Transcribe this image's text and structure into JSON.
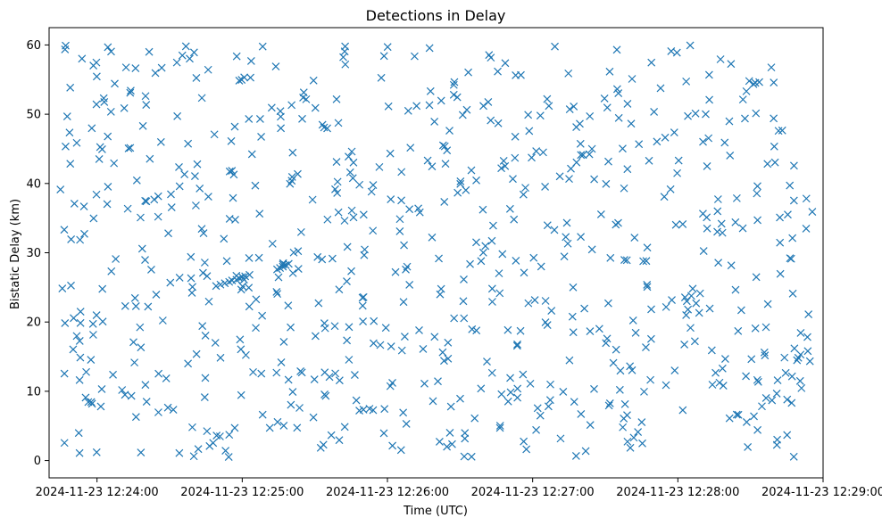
{
  "chart_data": {
    "type": "scatter",
    "title": "Detections in Delay",
    "xlabel": "Time (UTC)",
    "ylabel": "Bistatic Delay (km)",
    "marker": "x",
    "color": "#1f77b4",
    "x_unit": "minutes after 2024-11-23 12:24:00 UTC",
    "xlim": [
      -0.33,
      5.0
    ],
    "ylim": [
      -2.5,
      62.5
    ],
    "x_ticks": [
      0,
      1,
      2,
      3,
      4,
      5
    ],
    "x_tick_labels": [
      "2024-11-23 12:24:00",
      "2024-11-23 12:25:00",
      "2024-11-23 12:26:00",
      "2024-11-23 12:27:00",
      "2024-11-23 12:28:00",
      "2024-11-23 12:29:00"
    ],
    "y_ticks": [
      0,
      10,
      20,
      30,
      40,
      50,
      60
    ],
    "y_tick_labels": [
      "0",
      "10",
      "20",
      "30",
      "40",
      "50",
      "60"
    ],
    "track": [
      [
        0.82,
        25.2
      ],
      [
        0.85,
        25.4
      ],
      [
        0.88,
        25.6
      ],
      [
        0.91,
        25.8
      ],
      [
        0.93,
        26.0
      ],
      [
        0.96,
        26.1
      ],
      [
        0.98,
        26.3
      ],
      [
        1.0,
        26.5
      ],
      [
        1.02,
        26.6
      ],
      [
        1.05,
        26.8
      ],
      [
        1.24,
        27.6
      ],
      [
        1.26,
        27.8
      ],
      [
        1.28,
        28.0
      ],
      [
        1.3,
        28.2
      ],
      [
        1.32,
        28.4
      ]
    ],
    "random_seed": 7,
    "random_count": 740,
    "random_x_range": [
      -0.26,
      4.93
    ],
    "random_y_range": [
      0.5,
      60.0
    ]
  }
}
